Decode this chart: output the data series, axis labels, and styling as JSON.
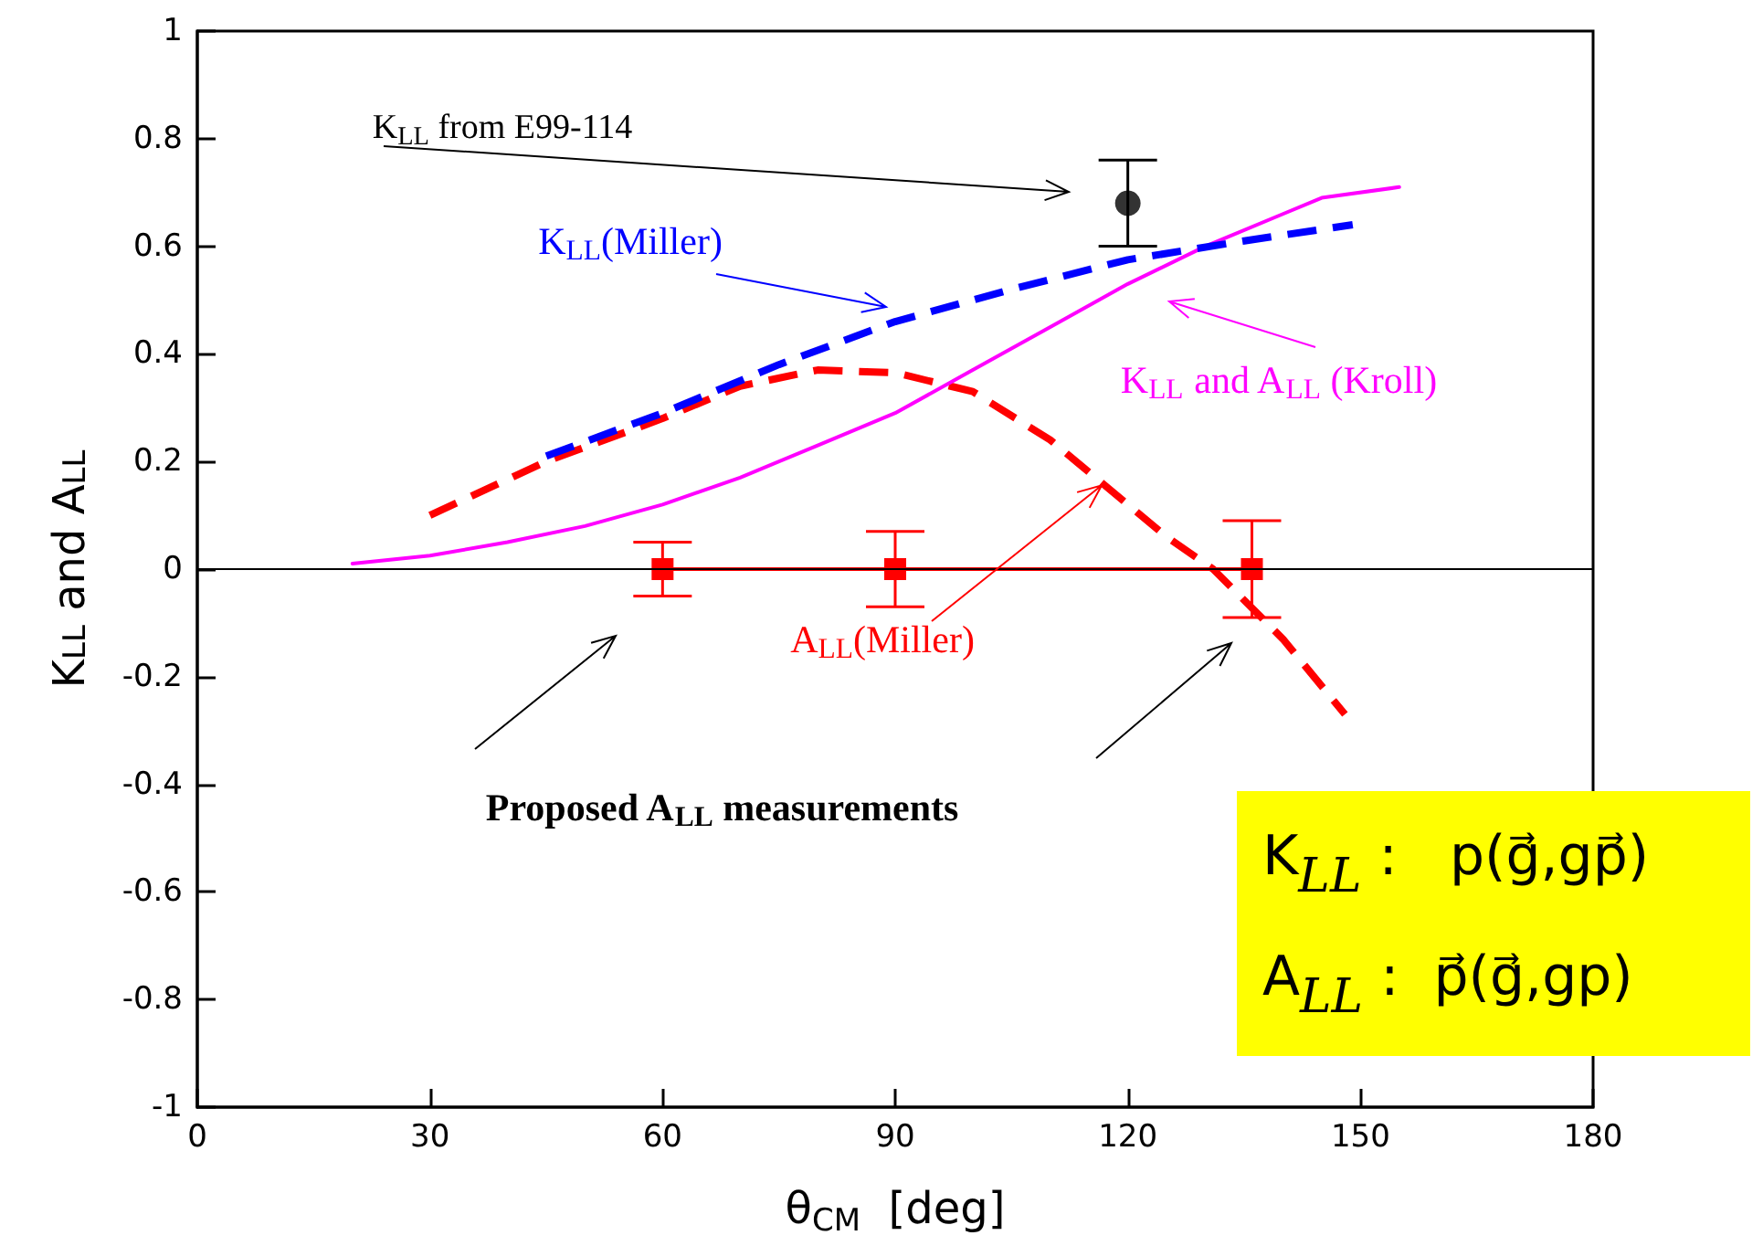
{
  "chart_data": {
    "type": "line",
    "xlabel": "θ$_{CM}$  [deg]",
    "ylabel": "K$_{LL}$ and A$_{LL}$",
    "xlim": [
      0,
      180
    ],
    "xticks": [
      0,
      30,
      60,
      90,
      120,
      150,
      180
    ],
    "ylim": [
      -1,
      1
    ],
    "yticks": [
      -1,
      -0.8,
      -0.6,
      -0.4,
      -0.2,
      0,
      0.2,
      0.4,
      0.6,
      0.8,
      1
    ],
    "grid": false,
    "series": [
      {
        "color": "#0000ff",
        "line_style": "dashed",
        "marker": "none",
        "x": [
          45,
          60,
          75,
          90,
          105,
          120,
          135,
          149
        ],
        "values": [
          0.21,
          0.29,
          0.38,
          0.46,
          0.52,
          0.575,
          0.61,
          0.64
        ]
      },
      {
        "color": "#ff0000",
        "line_style": "dashed",
        "marker": "none",
        "x": [
          30,
          45,
          60,
          70,
          80,
          90,
          100,
          110,
          120,
          125,
          131,
          140,
          148
        ],
        "values": [
          0.1,
          0.2,
          0.28,
          0.34,
          0.37,
          0.365,
          0.33,
          0.24,
          0.12,
          0.06,
          0,
          -0.13,
          -0.27
        ]
      },
      {
        "color": "#ff00ff",
        "line_style": "solid",
        "marker": "none",
        "x": [
          20,
          30,
          40,
          50,
          60,
          70,
          80,
          90,
          100,
          110,
          120,
          130,
          140,
          145,
          155
        ],
        "values": [
          0.01,
          0.025,
          0.05,
          0.08,
          0.12,
          0.17,
          0.23,
          0.29,
          0.37,
          0.45,
          0.53,
          0.6,
          0.66,
          0.69,
          0.71
        ]
      },
      {
        "type": "scatter",
        "color": "#000000",
        "marker": "circle",
        "x": [
          120
        ],
        "values": [
          0.68
        ],
        "errors": [
          0.08
        ]
      },
      {
        "color": "#ff0000",
        "line_style": "solid",
        "marker": "square",
        "x": [
          60,
          90,
          136
        ],
        "values": [
          0,
          0,
          0
        ],
        "errors": [
          0.05,
          0.07,
          0.09
        ]
      }
    ],
    "ref_lines": [
      {
        "axis": "y",
        "value": 0,
        "color": "#000000",
        "line_style": "solid"
      }
    ],
    "annotations": [
      "K$_{LL}$ from E99-114",
      "K$_{LL}$(Miller)",
      "K$_{LL}$ and A$_{LL}$ (Kroll)",
      {
        "text": "A$_{LL}$(Miller)",
        "x": 117,
        "y": 0.16
      },
      "Proposed A$_{LL}$ measurements",
      "K$_{LL}$ :   p(g⃗,gp⃗)",
      "A$_{LL}$ :  p⃗(g⃗,gp)"
    ]
  }
}
